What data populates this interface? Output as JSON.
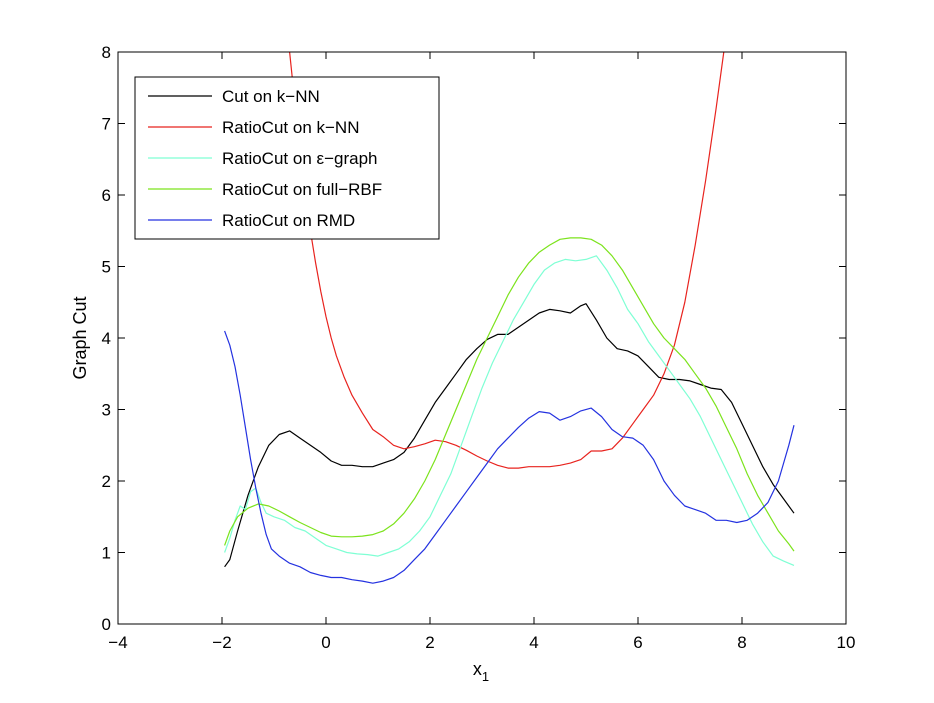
{
  "chart_data": {
    "type": "line",
    "title": "",
    "xlabel": "x",
    "xlabel_subscript": "1",
    "ylabel": "Graph Cut",
    "xlim": [
      -4,
      10
    ],
    "ylim": [
      0,
      8
    ],
    "xticks": [
      -4,
      -2,
      0,
      2,
      4,
      6,
      8,
      10
    ],
    "yticks": [
      0,
      1,
      2,
      3,
      4,
      5,
      6,
      7,
      8
    ],
    "xtick_labels": [
      "−4",
      "−2",
      "0",
      "2",
      "4",
      "6",
      "8",
      "10"
    ],
    "ytick_labels": [
      "0",
      "1",
      "2",
      "3",
      "4",
      "5",
      "6",
      "7",
      "8"
    ],
    "grid": false,
    "legend_position": "top-left",
    "series": [
      {
        "name": "Cut on k−NN",
        "color": "#000000",
        "x": [
          -1.95,
          -1.85,
          -1.7,
          -1.5,
          -1.3,
          -1.1,
          -0.9,
          -0.7,
          -0.5,
          -0.3,
          -0.1,
          0.1,
          0.3,
          0.5,
          0.7,
          0.9,
          1.1,
          1.3,
          1.5,
          1.7,
          1.9,
          2.1,
          2.3,
          2.5,
          2.7,
          2.9,
          3.1,
          3.3,
          3.5,
          3.7,
          3.9,
          4.1,
          4.3,
          4.5,
          4.7,
          4.9,
          5.0,
          5.2,
          5.4,
          5.6,
          5.8,
          6.0,
          6.2,
          6.4,
          6.6,
          6.8,
          7.0,
          7.2,
          7.4,
          7.6,
          7.8,
          8.0,
          8.2,
          8.4,
          8.6,
          8.8,
          9.0
        ],
        "y": [
          0.8,
          0.9,
          1.3,
          1.8,
          2.2,
          2.5,
          2.65,
          2.7,
          2.6,
          2.5,
          2.4,
          2.28,
          2.22,
          2.22,
          2.2,
          2.2,
          2.25,
          2.3,
          2.4,
          2.6,
          2.85,
          3.1,
          3.3,
          3.5,
          3.7,
          3.85,
          3.98,
          4.05,
          4.05,
          4.15,
          4.25,
          4.35,
          4.4,
          4.38,
          4.35,
          4.45,
          4.48,
          4.25,
          4.0,
          3.85,
          3.82,
          3.75,
          3.6,
          3.45,
          3.42,
          3.42,
          3.4,
          3.35,
          3.3,
          3.28,
          3.1,
          2.8,
          2.5,
          2.2,
          1.95,
          1.75,
          1.55
        ]
      },
      {
        "name": "RatioCut on k−NN",
        "color": "#e8231e",
        "x": [
          -0.7,
          -0.6,
          -0.5,
          -0.4,
          -0.3,
          -0.2,
          -0.1,
          0.0,
          0.1,
          0.2,
          0.35,
          0.5,
          0.7,
          0.9,
          1.1,
          1.3,
          1.5,
          1.7,
          1.9,
          2.1,
          2.3,
          2.5,
          2.7,
          2.9,
          3.1,
          3.3,
          3.5,
          3.7,
          3.9,
          4.1,
          4.3,
          4.5,
          4.7,
          4.9,
          5.1,
          5.3,
          5.5,
          5.7,
          5.9,
          6.1,
          6.3,
          6.5,
          6.7,
          6.9,
          7.1,
          7.3,
          7.5,
          7.65
        ],
        "y": [
          8.0,
          7.3,
          6.6,
          6.0,
          5.5,
          5.05,
          4.65,
          4.3,
          4.0,
          3.75,
          3.45,
          3.2,
          2.95,
          2.72,
          2.62,
          2.5,
          2.45,
          2.48,
          2.52,
          2.57,
          2.55,
          2.5,
          2.43,
          2.35,
          2.28,
          2.22,
          2.18,
          2.18,
          2.2,
          2.2,
          2.2,
          2.22,
          2.25,
          2.3,
          2.42,
          2.42,
          2.45,
          2.6,
          2.8,
          3.0,
          3.2,
          3.5,
          3.9,
          4.5,
          5.3,
          6.2,
          7.2,
          8.0
        ]
      },
      {
        "name": "RatioCut on ε−graph",
        "color": "#7fffd4",
        "x": [
          -1.95,
          -1.85,
          -1.75,
          -1.65,
          -1.55,
          -1.45,
          -1.35,
          -1.25,
          -1.15,
          -1.0,
          -0.8,
          -0.6,
          -0.4,
          -0.2,
          0.0,
          0.2,
          0.4,
          0.6,
          0.8,
          1.0,
          1.2,
          1.4,
          1.6,
          1.8,
          2.0,
          2.2,
          2.4,
          2.6,
          2.8,
          3.0,
          3.2,
          3.4,
          3.6,
          3.8,
          4.0,
          4.2,
          4.4,
          4.6,
          4.8,
          5.0,
          5.2,
          5.4,
          5.6,
          5.8,
          6.0,
          6.2,
          6.4,
          6.6,
          6.8,
          7.0,
          7.2,
          7.4,
          7.6,
          7.8,
          8.0,
          8.2,
          8.4,
          8.6,
          8.8,
          9.0
        ],
        "y": [
          1.0,
          1.2,
          1.45,
          1.65,
          1.6,
          1.85,
          1.9,
          1.7,
          1.55,
          1.5,
          1.45,
          1.35,
          1.3,
          1.2,
          1.1,
          1.05,
          1.0,
          0.98,
          0.97,
          0.95,
          1.0,
          1.05,
          1.15,
          1.3,
          1.5,
          1.8,
          2.1,
          2.5,
          2.9,
          3.3,
          3.65,
          3.95,
          4.25,
          4.5,
          4.75,
          4.95,
          5.05,
          5.1,
          5.08,
          5.1,
          5.15,
          4.95,
          4.7,
          4.4,
          4.2,
          3.95,
          3.75,
          3.55,
          3.35,
          3.15,
          2.9,
          2.6,
          2.3,
          2.0,
          1.7,
          1.4,
          1.15,
          0.95,
          0.88,
          0.82
        ]
      },
      {
        "name": "RatioCut on full−RBF",
        "color": "#7ce31c",
        "x": [
          -1.95,
          -1.85,
          -1.7,
          -1.5,
          -1.3,
          -1.1,
          -0.9,
          -0.7,
          -0.5,
          -0.3,
          -0.1,
          0.1,
          0.3,
          0.5,
          0.7,
          0.9,
          1.1,
          1.3,
          1.5,
          1.7,
          1.9,
          2.1,
          2.3,
          2.5,
          2.7,
          2.9,
          3.1,
          3.3,
          3.5,
          3.7,
          3.9,
          4.1,
          4.3,
          4.5,
          4.7,
          4.9,
          5.1,
          5.3,
          5.5,
          5.7,
          5.9,
          6.1,
          6.3,
          6.5,
          6.7,
          6.9,
          7.1,
          7.3,
          7.5,
          7.7,
          7.9,
          8.1,
          8.3,
          8.5,
          8.7,
          8.9,
          9.0
        ],
        "y": [
          1.1,
          1.3,
          1.5,
          1.62,
          1.68,
          1.65,
          1.58,
          1.5,
          1.42,
          1.35,
          1.28,
          1.23,
          1.22,
          1.22,
          1.23,
          1.25,
          1.3,
          1.4,
          1.55,
          1.75,
          2.0,
          2.3,
          2.65,
          3.0,
          3.35,
          3.7,
          4.0,
          4.3,
          4.6,
          4.85,
          5.05,
          5.2,
          5.3,
          5.38,
          5.4,
          5.4,
          5.38,
          5.3,
          5.15,
          4.95,
          4.7,
          4.45,
          4.2,
          4.0,
          3.85,
          3.7,
          3.5,
          3.3,
          3.05,
          2.75,
          2.45,
          2.1,
          1.8,
          1.55,
          1.3,
          1.12,
          1.02
        ]
      },
      {
        "name": "RatioCut on RMD",
        "color": "#2432e0",
        "x": [
          -1.95,
          -1.85,
          -1.75,
          -1.65,
          -1.55,
          -1.45,
          -1.35,
          -1.25,
          -1.15,
          -1.05,
          -0.9,
          -0.7,
          -0.5,
          -0.3,
          -0.1,
          0.1,
          0.3,
          0.5,
          0.7,
          0.9,
          1.1,
          1.3,
          1.5,
          1.7,
          1.9,
          2.1,
          2.3,
          2.5,
          2.7,
          2.9,
          3.1,
          3.3,
          3.5,
          3.7,
          3.9,
          4.1,
          4.3,
          4.5,
          4.7,
          4.9,
          5.1,
          5.3,
          5.5,
          5.7,
          5.9,
          6.1,
          6.3,
          6.5,
          6.7,
          6.9,
          7.1,
          7.3,
          7.5,
          7.7,
          7.9,
          8.1,
          8.3,
          8.5,
          8.7,
          8.9,
          9.0
        ],
        "y": [
          4.1,
          3.9,
          3.6,
          3.2,
          2.75,
          2.3,
          1.9,
          1.55,
          1.25,
          1.05,
          0.95,
          0.85,
          0.8,
          0.72,
          0.68,
          0.65,
          0.65,
          0.62,
          0.6,
          0.57,
          0.6,
          0.65,
          0.75,
          0.9,
          1.05,
          1.25,
          1.45,
          1.65,
          1.85,
          2.05,
          2.25,
          2.45,
          2.6,
          2.75,
          2.88,
          2.97,
          2.95,
          2.85,
          2.9,
          2.98,
          3.02,
          2.9,
          2.72,
          2.62,
          2.6,
          2.5,
          2.3,
          2.0,
          1.8,
          1.65,
          1.6,
          1.55,
          1.45,
          1.45,
          1.42,
          1.45,
          1.55,
          1.7,
          2.0,
          2.5,
          2.78
        ]
      }
    ]
  }
}
